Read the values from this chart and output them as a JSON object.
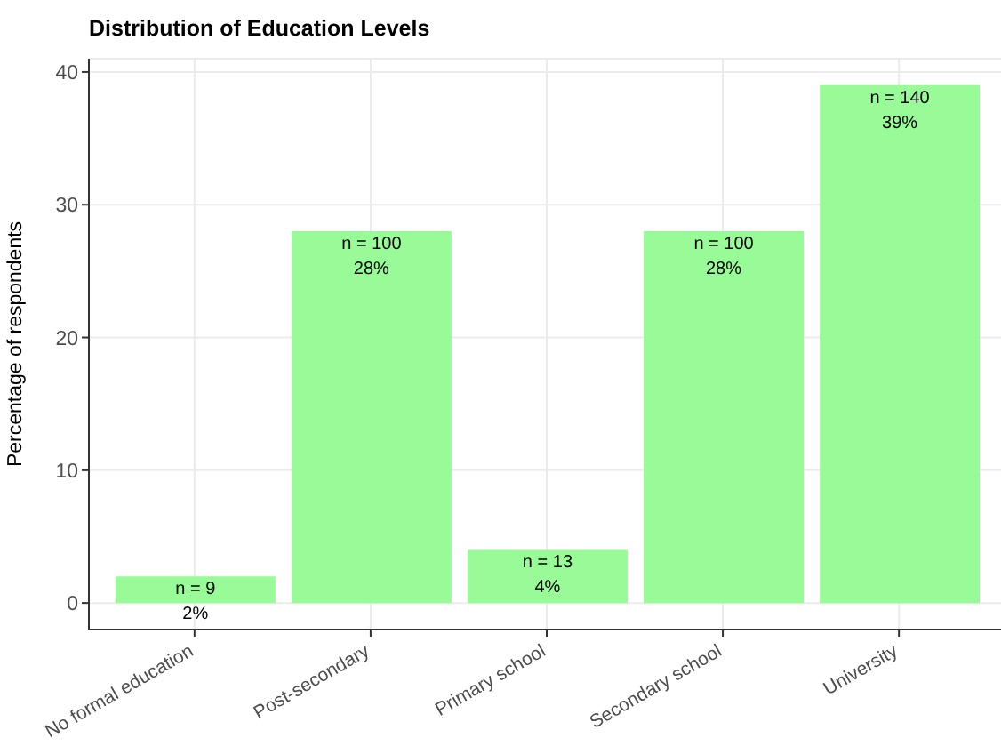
{
  "chart_data": {
    "type": "bar",
    "title": "Distribution of Education Levels",
    "ylabel": "Percentage of respondents",
    "categories": [
      "No formal education",
      "Post-secondary",
      "Primary school",
      "Secondary school",
      "University"
    ],
    "values": [
      2,
      28,
      4,
      28,
      39
    ],
    "value_labels": [
      "n = 9\n2%",
      "n = 100\n28%",
      "n = 13\n4%",
      "n = 100\n28%",
      "n = 140\n39%"
    ],
    "color": "#98fb98",
    "ylim": [
      -2,
      41
    ],
    "yticks": [
      0,
      10,
      20,
      30,
      40
    ],
    "grid": true
  }
}
